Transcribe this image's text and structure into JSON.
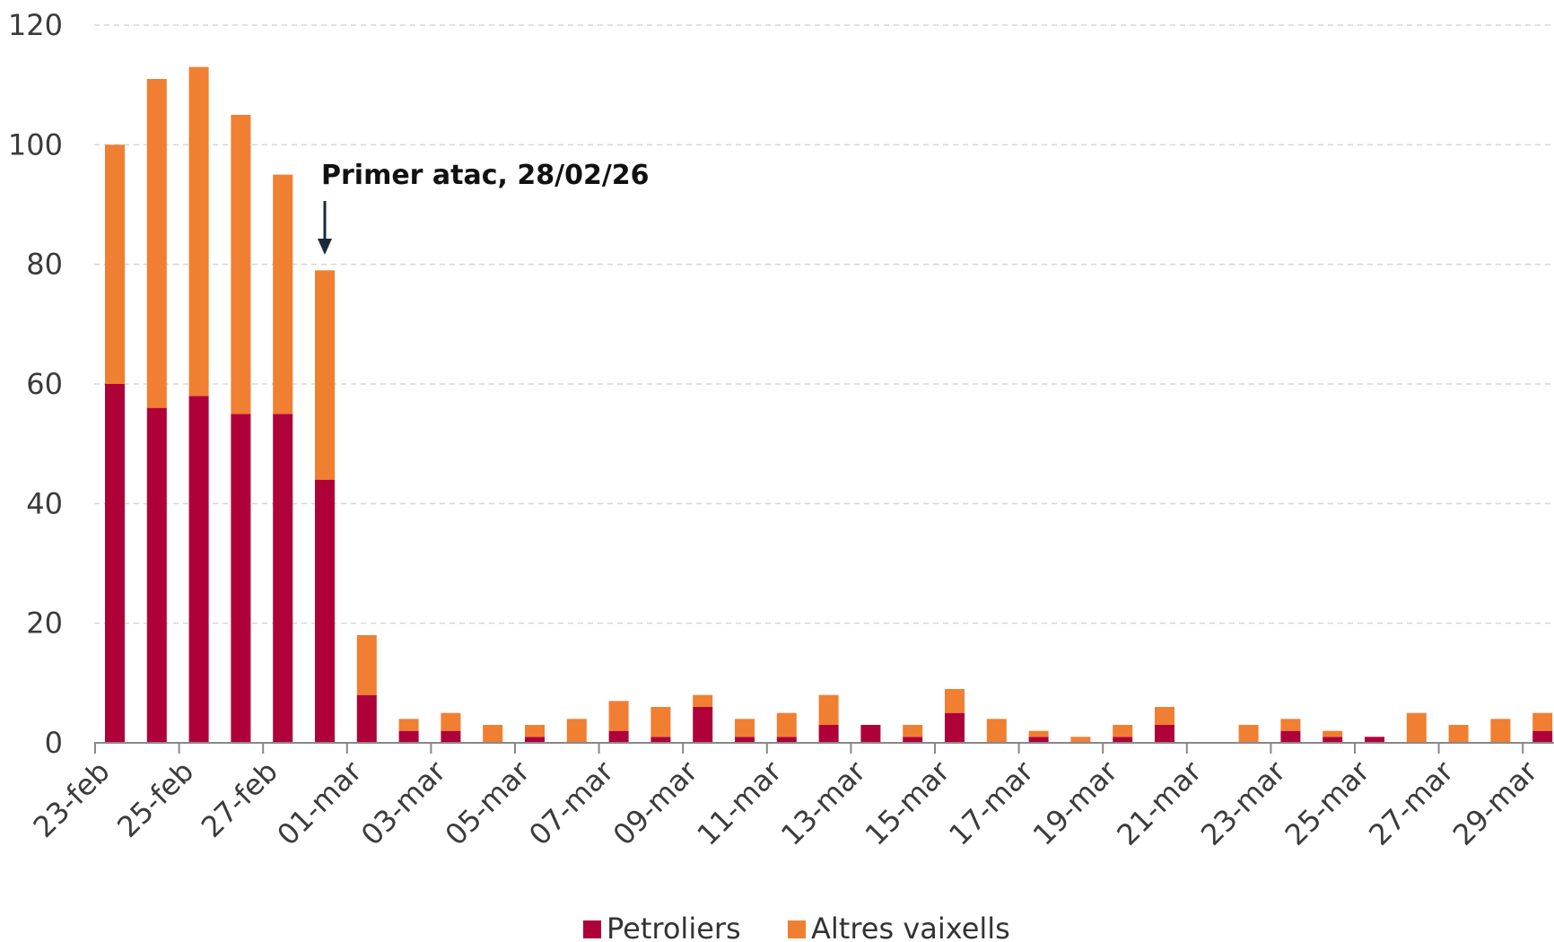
{
  "chart_data": {
    "type": "bar",
    "stacked": true,
    "categories": [
      "23-feb",
      "24-feb",
      "25-feb",
      "26-feb",
      "27-feb",
      "28-feb",
      "01-mar",
      "02-mar",
      "03-mar",
      "04-mar",
      "05-mar",
      "06-mar",
      "07-mar",
      "08-mar",
      "09-mar",
      "10-mar",
      "11-mar",
      "12-mar",
      "13-mar",
      "14-mar",
      "15-mar",
      "16-mar",
      "17-mar",
      "18-mar",
      "19-mar",
      "20-mar",
      "21-mar",
      "22-mar",
      "23-mar",
      "24-mar",
      "25-mar",
      "26-mar",
      "27-mar",
      "28-mar",
      "29-mar"
    ],
    "tick_labels": [
      "23-feb",
      "25-feb",
      "27-feb",
      "01-mar",
      "03-mar",
      "05-mar",
      "07-mar",
      "09-mar",
      "11-mar",
      "13-mar",
      "15-mar",
      "17-mar",
      "19-mar",
      "21-mar",
      "23-mar",
      "25-mar",
      "27-mar",
      "29-mar"
    ],
    "series": [
      {
        "name": "Petroliers",
        "color": "#b0003a",
        "values": [
          60,
          56,
          58,
          55,
          55,
          44,
          8,
          2,
          2,
          0,
          1,
          0,
          2,
          1,
          6,
          1,
          1,
          3,
          3,
          1,
          5,
          0,
          1,
          0,
          1,
          3,
          0,
          0,
          2,
          1,
          1,
          0,
          0,
          0,
          2
        ]
      },
      {
        "name": "Altres vaixells",
        "color": "#f07f31",
        "values": [
          40,
          55,
          55,
          50,
          40,
          35,
          10,
          2,
          3,
          3,
          2,
          4,
          5,
          5,
          2,
          3,
          4,
          5,
          0,
          2,
          4,
          4,
          1,
          1,
          2,
          3,
          0,
          3,
          2,
          1,
          0,
          5,
          3,
          4,
          3
        ]
      }
    ],
    "ylim": [
      0,
      120
    ],
    "yticks": [
      0,
      20,
      40,
      60,
      80,
      100,
      120
    ],
    "grid": true,
    "legend": "bottom",
    "annotation": {
      "text": "Primer atac, 28/02/26",
      "category": "28-feb"
    }
  }
}
